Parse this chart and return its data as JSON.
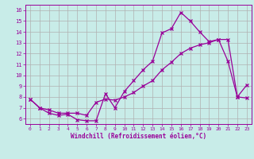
{
  "xlabel": "Windchill (Refroidissement éolien,°C)",
  "bg_color": "#c8ece8",
  "grid_color": "#b0b0b0",
  "line_color": "#990099",
  "x_values": [
    0,
    1,
    2,
    3,
    4,
    5,
    6,
    7,
    8,
    9,
    10,
    11,
    12,
    13,
    14,
    15,
    16,
    17,
    18,
    19,
    20,
    21,
    22,
    23
  ],
  "line1_y": [
    7.8,
    7.0,
    6.5,
    6.3,
    6.4,
    5.9,
    5.8,
    5.8,
    8.3,
    7.0,
    8.5,
    9.5,
    10.5,
    11.3,
    13.9,
    14.3,
    15.8,
    15.0,
    14.0,
    13.1,
    13.3,
    11.3,
    8.0,
    9.1
  ],
  "line2_y": [
    7.8,
    7.0,
    6.8,
    6.5,
    6.5,
    6.5,
    6.3,
    7.5,
    7.8,
    7.7,
    8.0,
    8.4,
    9.0,
    9.5,
    10.5,
    11.2,
    12.0,
    12.5,
    12.8,
    13.0,
    13.3,
    13.3,
    8.0,
    7.9
  ],
  "xlim": [
    -0.5,
    23.5
  ],
  "ylim": [
    5.5,
    16.5
  ],
  "yticks": [
    6,
    7,
    8,
    9,
    10,
    11,
    12,
    13,
    14,
    15,
    16
  ],
  "xticks": [
    0,
    1,
    2,
    3,
    4,
    5,
    6,
    7,
    8,
    9,
    10,
    11,
    12,
    13,
    14,
    15,
    16,
    17,
    18,
    19,
    20,
    21,
    22,
    23
  ],
  "figsize": [
    3.2,
    2.0
  ],
  "dpi": 100
}
